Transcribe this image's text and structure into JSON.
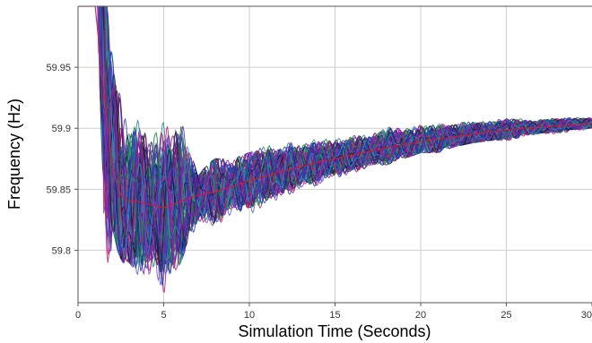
{
  "chart_data": {
    "type": "line",
    "title": "",
    "xlabel": "Simulation Time  (Seconds)",
    "ylabel": "Frequency (Hz)",
    "xlim": [
      0,
      30
    ],
    "ylim": [
      59.757,
      60.0
    ],
    "xticks": [
      0,
      5,
      10,
      15,
      20,
      25,
      30
    ],
    "xtick_labels": [
      "0",
      "5",
      "10",
      "15",
      "20",
      "25",
      "30"
    ],
    "yticks": [
      59.8,
      59.85,
      59.9,
      59.95
    ],
    "ytick_labels": [
      "59.8",
      "59.85",
      "59.9",
      "59.95"
    ],
    "grid": true,
    "legend": "none",
    "series_count_approx": 300,
    "envelope": {
      "t": [
        0,
        0.6,
        1.0,
        1.2,
        1.5,
        1.8,
        2.0,
        2.3,
        2.6,
        3.0,
        3.5,
        4.0,
        4.5,
        5.0,
        5.5,
        6.0,
        6.5,
        7.0,
        7.5,
        8.0,
        9.0,
        10.0,
        11.0,
        12.0,
        13.0,
        14.0,
        15.0,
        16.0,
        17.0,
        18.0,
        19.0,
        20.0,
        21.0,
        22.0,
        23.0,
        24.0,
        25.0,
        26.0,
        27.0,
        28.0,
        29.0,
        30.0
      ],
      "upper": [
        60.0,
        60.0,
        60.0,
        60.0,
        60.0,
        60.0,
        59.995,
        59.97,
        59.93,
        59.92,
        59.915,
        59.9,
        59.895,
        59.905,
        59.905,
        59.93,
        59.885,
        59.86,
        59.87,
        59.875,
        59.875,
        59.88,
        59.89,
        59.89,
        59.89,
        59.893,
        59.895,
        59.897,
        59.9,
        59.91,
        59.905,
        59.912,
        59.91,
        59.91,
        59.915,
        59.912,
        59.915,
        59.91,
        59.91,
        59.912,
        59.91,
        59.91
      ],
      "lower": [
        60.0,
        60.0,
        60.0,
        59.95,
        59.78,
        59.77,
        59.82,
        59.8,
        59.79,
        59.79,
        59.78,
        59.775,
        59.775,
        59.76,
        59.78,
        59.79,
        59.81,
        59.8,
        59.82,
        59.81,
        59.83,
        59.82,
        59.84,
        59.84,
        59.85,
        59.85,
        59.86,
        59.86,
        59.87,
        59.87,
        59.875,
        59.88,
        59.88,
        59.885,
        59.888,
        59.89,
        59.89,
        59.892,
        59.894,
        59.895,
        59.896,
        59.897
      ]
    },
    "mean": {
      "t": [
        0,
        1.0,
        1.5,
        2.0,
        2.5,
        3.0,
        3.5,
        4.0,
        5.0,
        6.0,
        7.0,
        8.0,
        9.0,
        10.0,
        12.0,
        14.0,
        16.0,
        18.0,
        20.0,
        22.0,
        24.0,
        26.0,
        28.0,
        30.0
      ],
      "y": [
        60.0,
        60.0,
        59.93,
        59.87,
        59.845,
        59.84,
        59.84,
        59.838,
        59.835,
        59.84,
        59.845,
        59.848,
        59.852,
        59.857,
        59.865,
        59.872,
        59.878,
        59.884,
        59.889,
        59.893,
        59.897,
        59.9,
        59.902,
        59.904
      ]
    },
    "colors": [
      "#1a1a1a",
      "#1f3fd0",
      "#3a3aa8",
      "#6a1fb0",
      "#0a8a3a",
      "#2a2a2a",
      "#7a1aa0",
      "#1a9ab0",
      "#1040c0",
      "#c0197a",
      "#3aa84a",
      "#5a5ad0",
      "#d0206a",
      "#1a1a5a",
      "#2a8a8a",
      "#7a4ad0"
    ]
  }
}
